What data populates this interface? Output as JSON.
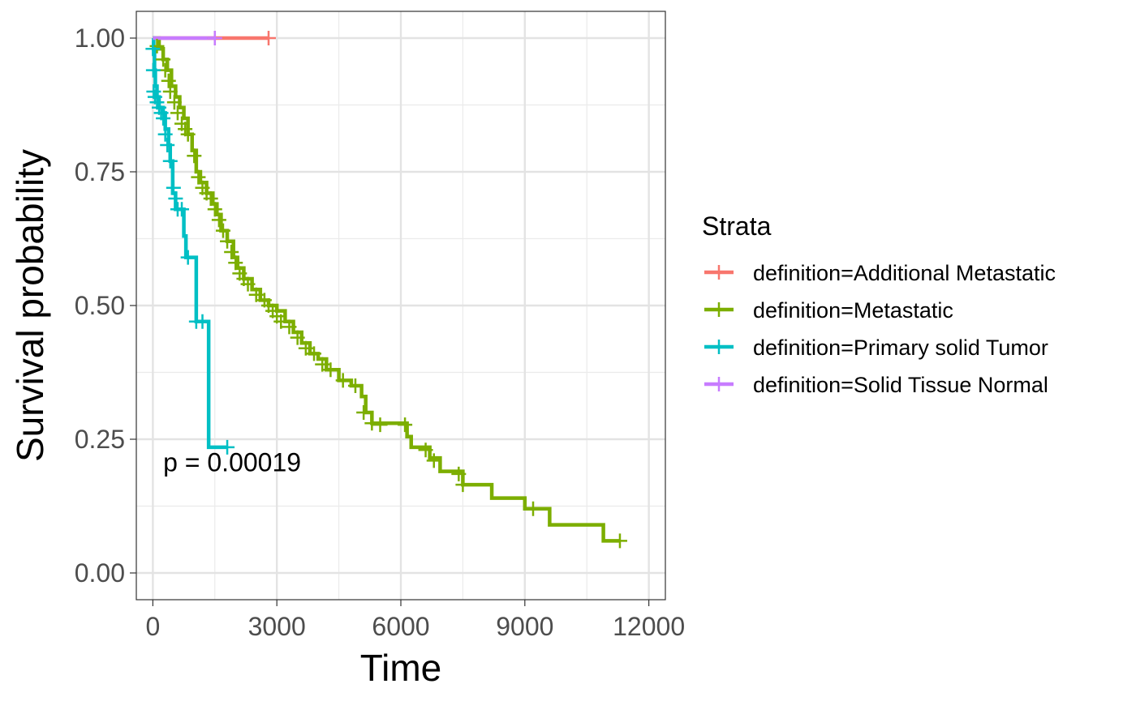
{
  "chart_data": {
    "type": "line",
    "xlabel": "Time",
    "ylabel": "Survival probability",
    "xlim": [
      -400,
      12400
    ],
    "ylim": [
      -0.05,
      1.05
    ],
    "x_ticks": [
      0,
      3000,
      6000,
      9000,
      12000
    ],
    "x_tick_labels": [
      "0",
      "3000",
      "6000",
      "9000",
      "12000"
    ],
    "y_ticks": [
      0,
      0.25,
      0.5,
      0.75,
      1.0
    ],
    "y_tick_labels": [
      "0.00",
      "0.25",
      "0.50",
      "0.75",
      "1.00"
    ],
    "grid": true,
    "legend": {
      "title": "Strata",
      "position": "right"
    },
    "annotation": {
      "text": "p = 0.00019",
      "x": 250,
      "y": 0.19
    },
    "series": [
      {
        "name": "definition=Additional Metastatic",
        "color": "#F8766D",
        "steps": [
          [
            0,
            1.0
          ],
          [
            2800,
            1.0
          ]
        ],
        "censor": [
          [
            1500,
            1.0
          ],
          [
            2800,
            1.0
          ]
        ]
      },
      {
        "name": "definition=Metastatic",
        "color": "#7CAE00",
        "steps": [
          [
            0,
            1.0
          ],
          [
            150,
            0.98
          ],
          [
            250,
            0.96
          ],
          [
            350,
            0.94
          ],
          [
            450,
            0.91
          ],
          [
            550,
            0.89
          ],
          [
            650,
            0.87
          ],
          [
            750,
            0.85
          ],
          [
            850,
            0.82
          ],
          [
            950,
            0.79
          ],
          [
            1050,
            0.75
          ],
          [
            1150,
            0.73
          ],
          [
            1300,
            0.71
          ],
          [
            1450,
            0.69
          ],
          [
            1550,
            0.67
          ],
          [
            1650,
            0.64
          ],
          [
            1800,
            0.62
          ],
          [
            1950,
            0.59
          ],
          [
            2050,
            0.57
          ],
          [
            2200,
            0.55
          ],
          [
            2400,
            0.53
          ],
          [
            2600,
            0.51
          ],
          [
            2800,
            0.5
          ],
          [
            3000,
            0.49
          ],
          [
            3200,
            0.47
          ],
          [
            3400,
            0.45
          ],
          [
            3600,
            0.43
          ],
          [
            3800,
            0.41
          ],
          [
            4000,
            0.4
          ],
          [
            4200,
            0.38
          ],
          [
            4500,
            0.36
          ],
          [
            4800,
            0.35
          ],
          [
            5050,
            0.33
          ],
          [
            5150,
            0.3
          ],
          [
            5300,
            0.28
          ],
          [
            6150,
            0.255
          ],
          [
            6250,
            0.235
          ],
          [
            6700,
            0.215
          ],
          [
            6950,
            0.19
          ],
          [
            7500,
            0.165
          ],
          [
            8200,
            0.14
          ],
          [
            9000,
            0.12
          ],
          [
            9600,
            0.09
          ],
          [
            10900,
            0.06
          ],
          [
            11300,
            0.06
          ]
        ],
        "censor": [
          [
            100,
            0.985
          ],
          [
            250,
            0.96
          ],
          [
            300,
            0.94
          ],
          [
            380,
            0.92
          ],
          [
            420,
            0.9
          ],
          [
            520,
            0.88
          ],
          [
            600,
            0.86
          ],
          [
            700,
            0.84
          ],
          [
            780,
            0.83
          ],
          [
            850,
            0.82
          ],
          [
            1000,
            0.78
          ],
          [
            1100,
            0.74
          ],
          [
            1200,
            0.72
          ],
          [
            1300,
            0.71
          ],
          [
            1400,
            0.7
          ],
          [
            1500,
            0.68
          ],
          [
            1600,
            0.66
          ],
          [
            1700,
            0.64
          ],
          [
            1800,
            0.62
          ],
          [
            1900,
            0.6
          ],
          [
            2000,
            0.58
          ],
          [
            2100,
            0.56
          ],
          [
            2200,
            0.55
          ],
          [
            2300,
            0.54
          ],
          [
            2500,
            0.52
          ],
          [
            2700,
            0.51
          ],
          [
            2800,
            0.5
          ],
          [
            2900,
            0.49
          ],
          [
            3000,
            0.48
          ],
          [
            3100,
            0.47
          ],
          [
            3300,
            0.46
          ],
          [
            3500,
            0.44
          ],
          [
            3700,
            0.42
          ],
          [
            3900,
            0.41
          ],
          [
            4100,
            0.39
          ],
          [
            4300,
            0.38
          ],
          [
            4600,
            0.36
          ],
          [
            4900,
            0.35
          ],
          [
            5100,
            0.3
          ],
          [
            5300,
            0.28
          ],
          [
            5500,
            0.277
          ],
          [
            6100,
            0.277
          ],
          [
            6600,
            0.23
          ],
          [
            6800,
            0.21
          ],
          [
            7400,
            0.185
          ],
          [
            7500,
            0.165
          ],
          [
            9200,
            0.12
          ],
          [
            11300,
            0.06
          ]
        ]
      },
      {
        "name": "definition=Primary solid Tumor",
        "color": "#00BFC4",
        "steps": [
          [
            0,
            1.0
          ],
          [
            20,
            0.98
          ],
          [
            40,
            0.94
          ],
          [
            60,
            0.91
          ],
          [
            100,
            0.89
          ],
          [
            150,
            0.87
          ],
          [
            250,
            0.86
          ],
          [
            300,
            0.83
          ],
          [
            380,
            0.8
          ],
          [
            420,
            0.77
          ],
          [
            480,
            0.71
          ],
          [
            550,
            0.68
          ],
          [
            750,
            0.63
          ],
          [
            800,
            0.59
          ],
          [
            1050,
            0.47
          ],
          [
            1350,
            0.235
          ],
          [
            1800,
            0.235
          ]
        ],
        "censor": [
          [
            0,
            0.98
          ],
          [
            10,
            0.94
          ],
          [
            20,
            0.9
          ],
          [
            50,
            0.89
          ],
          [
            100,
            0.88
          ],
          [
            150,
            0.87
          ],
          [
            200,
            0.86
          ],
          [
            250,
            0.85
          ],
          [
            300,
            0.82
          ],
          [
            350,
            0.8
          ],
          [
            420,
            0.77
          ],
          [
            500,
            0.72
          ],
          [
            550,
            0.7
          ],
          [
            600,
            0.68
          ],
          [
            700,
            0.68
          ],
          [
            850,
            0.59
          ],
          [
            1050,
            0.47
          ],
          [
            1200,
            0.47
          ],
          [
            1800,
            0.235
          ]
        ]
      },
      {
        "name": "definition=Solid Tissue Normal",
        "color": "#C77CFF",
        "steps": [
          [
            0,
            1.0
          ],
          [
            1500,
            1.0
          ]
        ],
        "censor": [
          [
            1500,
            1.0
          ]
        ]
      }
    ]
  }
}
